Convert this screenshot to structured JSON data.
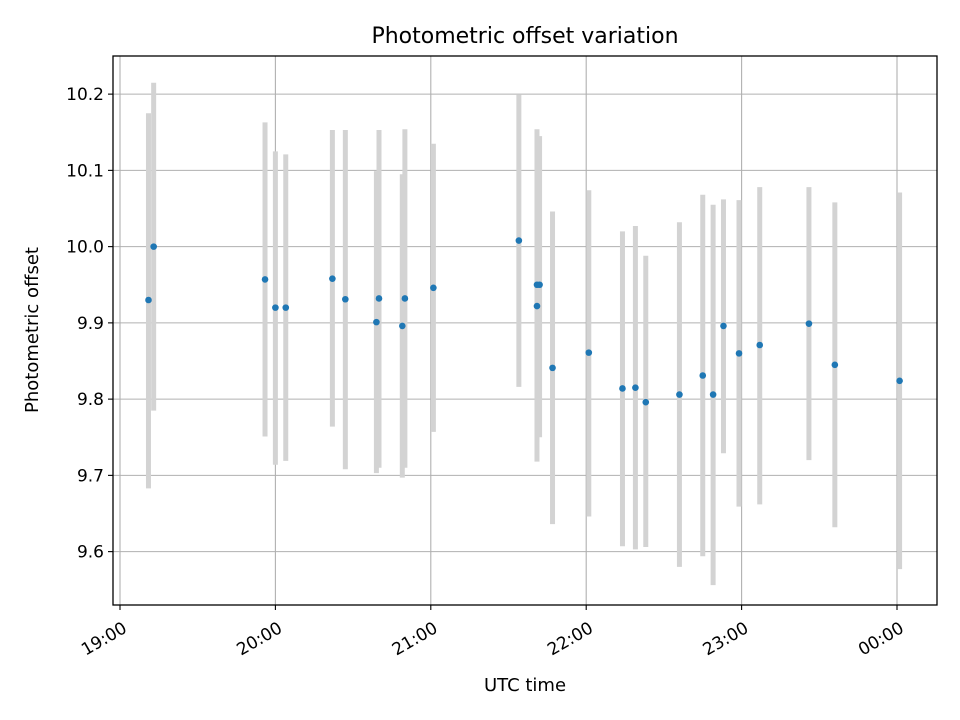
{
  "chart_data": {
    "type": "scatter",
    "title": "Photometric offset variation",
    "xlabel": "UTC time",
    "ylabel": "Photometric offset",
    "x_tick_labels": [
      "19:00",
      "20:00",
      "21:00",
      "22:00",
      "23:00",
      "00:00"
    ],
    "y_tick_labels": [
      "9.6",
      "9.7",
      "9.8",
      "9.9",
      "10.0",
      "10.1",
      "10.2"
    ],
    "ylim": [
      9.53,
      10.25
    ],
    "grid": true,
    "points": [
      {
        "time": "19:11",
        "value": 9.93,
        "error_low": 9.683,
        "error_high": 10.175
      },
      {
        "time": "19:13",
        "value": 10.0,
        "error_low": 9.785,
        "error_high": 10.215
      },
      {
        "time": "19:56",
        "value": 9.957,
        "error_low": 9.751,
        "error_high": 10.163
      },
      {
        "time": "20:00",
        "value": 9.92,
        "error_low": 9.714,
        "error_high": 10.125
      },
      {
        "time": "20:04",
        "value": 9.92,
        "error_low": 9.719,
        "error_high": 10.121
      },
      {
        "time": "20:22",
        "value": 9.958,
        "error_low": 9.764,
        "error_high": 10.153
      },
      {
        "time": "20:27",
        "value": 9.931,
        "error_low": 9.708,
        "error_high": 10.153
      },
      {
        "time": "20:39",
        "value": 9.901,
        "error_low": 9.703,
        "error_high": 10.099
      },
      {
        "time": "20:40",
        "value": 9.932,
        "error_low": 9.71,
        "error_high": 10.153
      },
      {
        "time": "20:49",
        "value": 9.896,
        "error_low": 9.697,
        "error_high": 10.095
      },
      {
        "time": "20:50",
        "value": 9.932,
        "error_low": 9.71,
        "error_high": 10.154
      },
      {
        "time": "21:01",
        "value": 9.946,
        "error_low": 9.757,
        "error_high": 10.135
      },
      {
        "time": "21:34",
        "value": 10.008,
        "error_low": 9.816,
        "error_high": 10.199
      },
      {
        "time": "21:41",
        "value": 9.922,
        "error_low": 9.718,
        "error_high": 10.125
      },
      {
        "time": "21:41",
        "value": 9.95,
        "error_low": 9.745,
        "error_high": 10.154
      },
      {
        "time": "21:42",
        "value": 9.95,
        "error_low": 9.75,
        "error_high": 10.145
      },
      {
        "time": "21:47",
        "value": 9.841,
        "error_low": 9.636,
        "error_high": 10.046
      },
      {
        "time": "22:01",
        "value": 9.861,
        "error_low": 9.646,
        "error_high": 10.074
      },
      {
        "time": "22:14",
        "value": 9.814,
        "error_low": 9.607,
        "error_high": 10.02
      },
      {
        "time": "22:19",
        "value": 9.815,
        "error_low": 9.603,
        "error_high": 10.027
      },
      {
        "time": "22:23",
        "value": 9.796,
        "error_low": 9.606,
        "error_high": 9.988
      },
      {
        "time": "22:36",
        "value": 9.806,
        "error_low": 9.58,
        "error_high": 10.032
      },
      {
        "time": "22:45",
        "value": 9.831,
        "error_low": 9.594,
        "error_high": 10.068
      },
      {
        "time": "22:49",
        "value": 9.806,
        "error_low": 9.556,
        "error_high": 10.055
      },
      {
        "time": "22:53",
        "value": 9.896,
        "error_low": 9.729,
        "error_high": 10.062
      },
      {
        "time": "22:59",
        "value": 9.86,
        "error_low": 9.659,
        "error_high": 10.061
      },
      {
        "time": "23:07",
        "value": 9.871,
        "error_low": 9.662,
        "error_high": 10.078
      },
      {
        "time": "23:26",
        "value": 9.899,
        "error_low": 9.72,
        "error_high": 10.078
      },
      {
        "time": "23:36",
        "value": 9.845,
        "error_low": 9.632,
        "error_high": 10.058
      },
      {
        "time": "00:01",
        "value": 9.824,
        "error_low": 9.577,
        "error_high": 10.071
      }
    ],
    "colors": {
      "marker": "#1f77b4",
      "errorbar": "#d3d3d3",
      "grid": "#b0b0b0"
    }
  }
}
